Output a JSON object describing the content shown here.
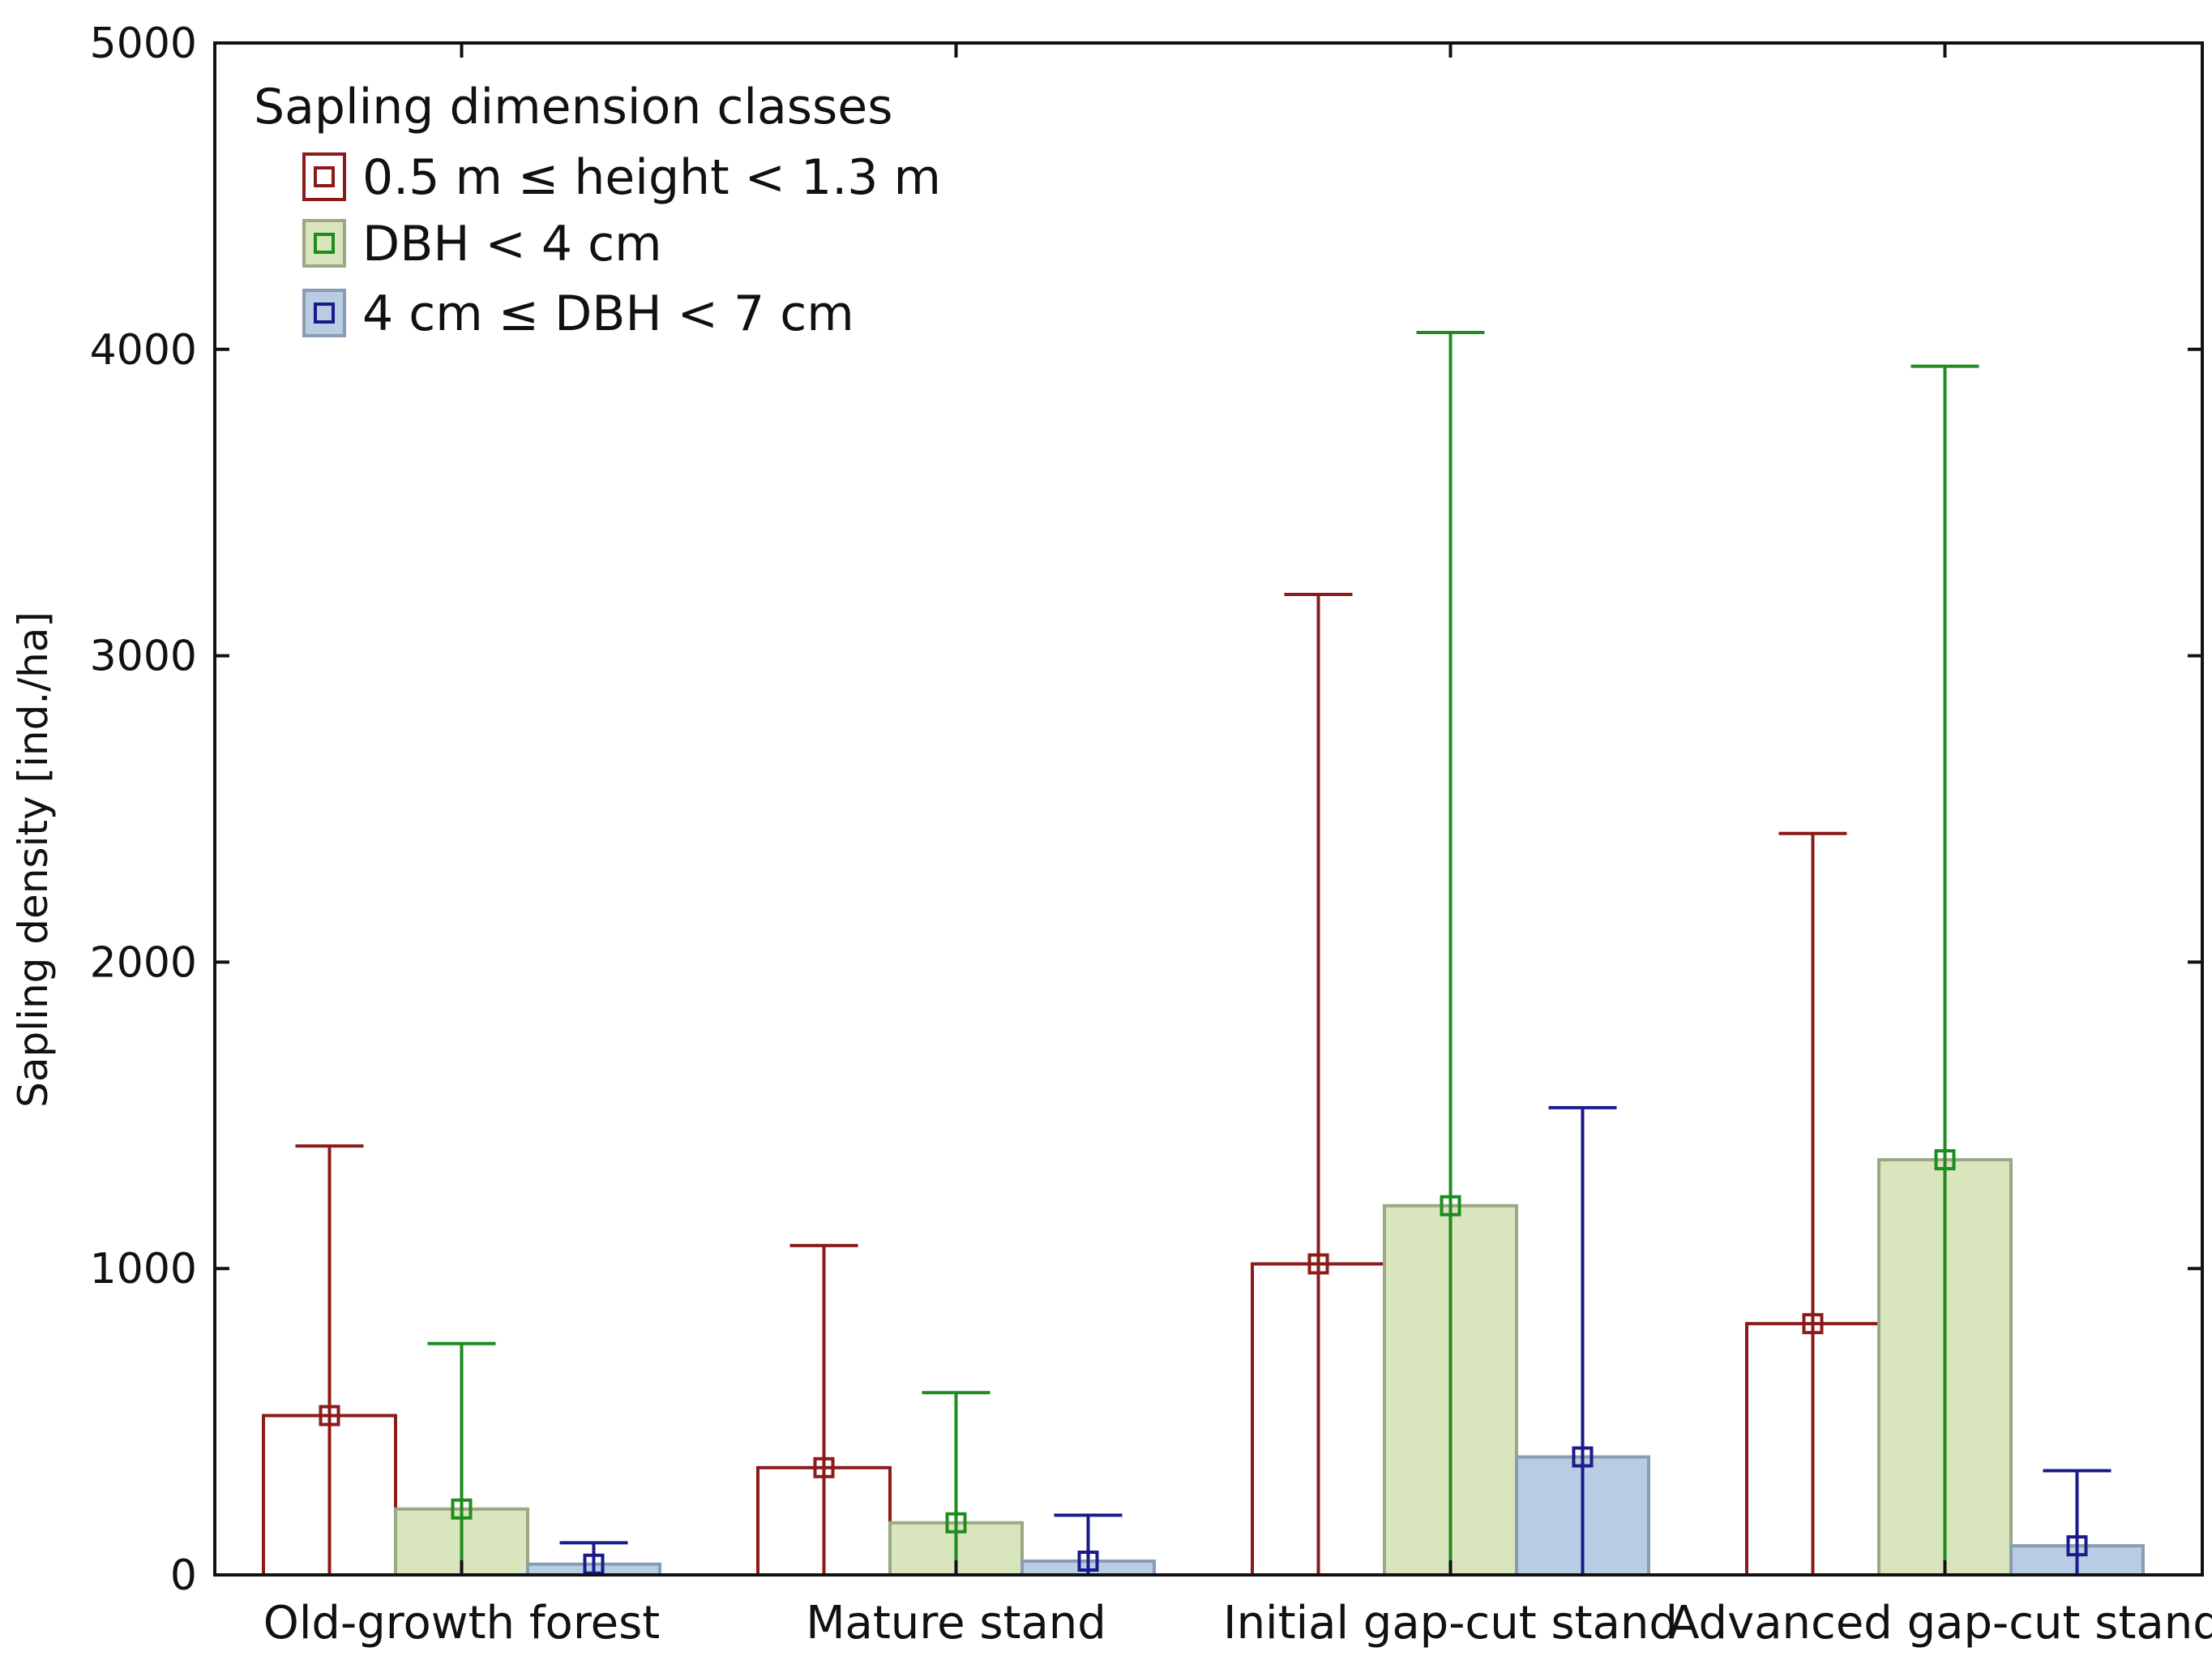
{
  "chart_data": {
    "type": "bar",
    "title": "",
    "xlabel": "",
    "ylabel": "Sapling density [ind./ha]",
    "ylim": [
      0,
      5000
    ],
    "yticks": [
      0,
      1000,
      2000,
      3000,
      4000,
      5000
    ],
    "ytick_labels": [
      "0",
      "1000",
      "2000",
      "3000",
      "4000",
      "5000"
    ],
    "grid": false,
    "legend_position": "top-left",
    "legend": {
      "title": "Sapling dimension classes"
    },
    "categories": [
      "Old-growth forest",
      "Mature stand",
      "Initial gap-cut stand",
      "Advanced gap-cut stand"
    ],
    "series": [
      {
        "name": "0.5 m ≤ height < 1.3 m",
        "values": [
          520,
          350,
          1015,
          820
        ],
        "error_upper": [
          1400,
          1075,
          3200,
          2420
        ],
        "fill": "#ffffff",
        "edge": "#8b1a1a"
      },
      {
        "name": "DBH < 4 cm",
        "values": [
          215,
          170,
          1205,
          1355
        ],
        "error_upper": [
          755,
          595,
          4055,
          3945
        ],
        "fill": "#d9e5bd",
        "edge": "#9aa884",
        "marker": "#1e8c1e"
      },
      {
        "name": "4 cm ≤ DBH < 7 cm",
        "values": [
          35,
          45,
          385,
          95
        ],
        "error_upper": [
          105,
          195,
          1525,
          340
        ],
        "fill": "#b8cde3",
        "edge": "#8a9cb0",
        "marker": "#1a1a8c"
      }
    ]
  }
}
